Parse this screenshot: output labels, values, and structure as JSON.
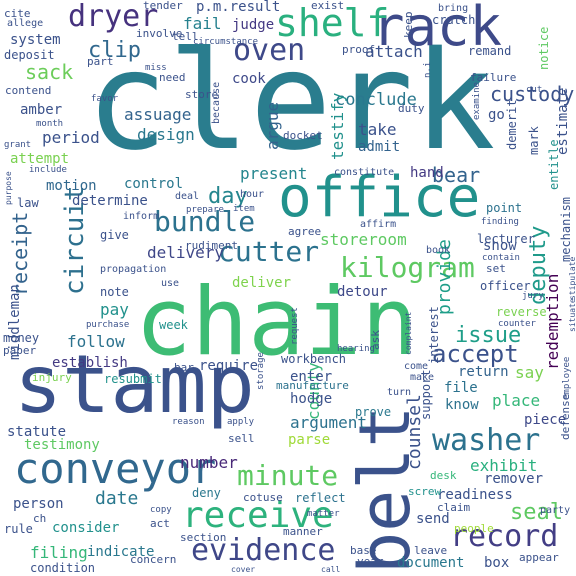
{
  "words": [
    {
      "text": "clerk",
      "color": "#2a7d8e",
      "rot": 0
    },
    {
      "text": "chain",
      "color": "#3dbc74",
      "rot": 0
    },
    {
      "text": "stamp",
      "color": "#3b528b",
      "rot": 0
    },
    {
      "text": "belt",
      "color": "#3b528b",
      "rot": -90
    },
    {
      "text": "office",
      "color": "#21918c",
      "rot": 0
    },
    {
      "text": "rack",
      "color": "#3e4a89",
      "rot": 0
    },
    {
      "text": "shelf",
      "color": "#2ab07f",
      "rot": 0
    },
    {
      "text": "conveyor",
      "color": "#31688e",
      "rot": 0
    },
    {
      "text": "receive",
      "color": "#2db27d",
      "rot": 0
    },
    {
      "text": "evidence",
      "color": "#3f4788",
      "rot": 0
    },
    {
      "text": "record",
      "color": "#433e85",
      "rot": 0
    },
    {
      "text": "washer",
      "color": "#2c728e",
      "rot": 0
    },
    {
      "text": "kilogram",
      "color": "#5ec962",
      "rot": 0
    },
    {
      "text": "minute",
      "color": "#5ec962",
      "rot": 0
    },
    {
      "text": "cutter",
      "color": "#2c728e",
      "rot": 0
    },
    {
      "text": "bundle",
      "color": "#2c728e",
      "rot": 0
    },
    {
      "text": "oven",
      "color": "#3e4989",
      "rot": 0
    },
    {
      "text": "dryer",
      "color": "#46327e",
      "rot": 0
    },
    {
      "text": "accept",
      "color": "#3b528b",
      "rot": 0
    },
    {
      "text": "issue",
      "color": "#1f9e89",
      "rot": 0
    },
    {
      "text": "circuit",
      "color": "#2d708e",
      "rot": -90
    },
    {
      "text": "receipt",
      "color": "#33638d",
      "rot": -90
    },
    {
      "text": "deputy",
      "color": "#1f9a8a",
      "rot": -90
    },
    {
      "text": "day",
      "color": "#24868e",
      "rot": 0
    },
    {
      "text": "seal",
      "color": "#5ec962",
      "rot": 0
    },
    {
      "text": "exhibit",
      "color": "#2ab07f",
      "rot": 0
    },
    {
      "text": "bear",
      "color": "#33638d",
      "rot": 0
    },
    {
      "text": "custody",
      "color": "#3b528b",
      "rot": 0
    },
    {
      "text": "conclude",
      "color": "#2a788e",
      "rot": 0
    },
    {
      "text": "sack",
      "color": "#6ccd5a",
      "rot": 0
    },
    {
      "text": "clip",
      "color": "#31688e",
      "rot": 0
    },
    {
      "text": "storeroom",
      "color": "#5ec962",
      "rot": 0
    },
    {
      "text": "provide",
      "color": "#1f9e89",
      "rot": -90
    },
    {
      "text": "redemption",
      "color": "#440154",
      "rot": -90
    },
    {
      "text": "county",
      "color": "#35b779",
      "rot": -90
    },
    {
      "text": "counsel",
      "color": "#3b528b",
      "rot": -90
    },
    {
      "text": "argument",
      "color": "#2c728e",
      "rot": 0
    },
    {
      "text": "date",
      "color": "#2a788e",
      "rot": 0
    },
    {
      "text": "number",
      "color": "#482878",
      "rot": 0
    },
    {
      "text": "statute",
      "color": "#3b528b",
      "rot": 0
    },
    {
      "text": "testimony",
      "color": "#5ec962",
      "rot": 0
    },
    {
      "text": "delivery",
      "color": "#3f4788",
      "rot": 0
    },
    {
      "text": "deliver",
      "color": "#7fd34e",
      "rot": 0
    },
    {
      "text": "follow",
      "color": "#2c728e",
      "rot": 0
    },
    {
      "text": "pay",
      "color": "#21918c",
      "rot": 0
    },
    {
      "text": "establish",
      "color": "#443a83",
      "rot": 0
    },
    {
      "text": "require",
      "color": "#3b528b",
      "rot": 0
    },
    {
      "text": "detour",
      "color": "#3e4989",
      "rot": 0
    },
    {
      "text": "return",
      "color": "#33638d",
      "rot": 0
    },
    {
      "text": "place",
      "color": "#35b779",
      "rot": 0
    },
    {
      "text": "remover",
      "color": "#3b528b",
      "rot": 0
    },
    {
      "text": "readiness",
      "color": "#3b528b",
      "rot": 0
    },
    {
      "text": "piece",
      "color": "#3e4989",
      "rot": 0
    },
    {
      "text": "know",
      "color": "#2c728e",
      "rot": 0
    },
    {
      "text": "file",
      "color": "#2c728e",
      "rot": 0
    },
    {
      "text": "say",
      "color": "#7ad151",
      "rot": 0
    },
    {
      "text": "enter",
      "color": "#3b528b",
      "rot": 0
    },
    {
      "text": "hodge",
      "color": "#3b528b",
      "rot": 0
    },
    {
      "text": "parse",
      "color": "#a0da39",
      "rot": 0
    },
    {
      "text": "present",
      "color": "#24868e",
      "rot": 0
    },
    {
      "text": "determine",
      "color": "#3b528b",
      "rot": 0
    },
    {
      "text": "control",
      "color": "#2a788e",
      "rot": 0
    },
    {
      "text": "motion",
      "color": "#31688e",
      "rot": 0
    },
    {
      "text": "period",
      "color": "#3b528b",
      "rot": 0
    },
    {
      "text": "design",
      "color": "#2a788e",
      "rot": 0
    },
    {
      "text": "assuage",
      "color": "#33638d",
      "rot": 0
    },
    {
      "text": "argue",
      "color": "#33638d",
      "rot": -90
    },
    {
      "text": "testify",
      "color": "#21918c",
      "rot": -90
    },
    {
      "text": "take",
      "color": "#3b528b",
      "rot": 0
    },
    {
      "text": "admit",
      "color": "#33638d",
      "rot": 0
    },
    {
      "text": "hand",
      "color": "#443a83",
      "rot": 0
    },
    {
      "text": "attach",
      "color": "#3b528b",
      "rot": 0
    },
    {
      "text": "judge",
      "color": "#443983",
      "rot": 0
    },
    {
      "text": "fail",
      "color": "#26818e",
      "rot": 0
    },
    {
      "text": "system",
      "color": "#3b528b",
      "rot": 0
    },
    {
      "text": "deposit",
      "color": "#3b528b",
      "rot": 0
    },
    {
      "text": "amber",
      "color": "#3b528b",
      "rot": 0
    },
    {
      "text": "attempt",
      "color": "#7ad151",
      "rot": 0
    },
    {
      "text": "cook",
      "color": "#3e4989",
      "rot": 0
    },
    {
      "text": "middleman",
      "color": "#3b528b",
      "rot": -90
    },
    {
      "text": "money",
      "color": "#3b528b",
      "rot": 0
    },
    {
      "text": "paper",
      "color": "#3b528b",
      "rot": 0
    },
    {
      "text": "give",
      "color": "#3b528b",
      "rot": 0
    },
    {
      "text": "note",
      "color": "#3b528b",
      "rot": 0
    },
    {
      "text": "week",
      "color": "#21918c",
      "rot": 0
    },
    {
      "text": "person",
      "color": "#3b528b",
      "rot": 0
    },
    {
      "text": "consider",
      "color": "#21918c",
      "rot": 0
    },
    {
      "text": "filing",
      "color": "#35b779",
      "rot": 0
    },
    {
      "text": "indicate",
      "color": "#2a788e",
      "rot": 0
    },
    {
      "text": "resubmit",
      "color": "#21918c",
      "rot": 0
    },
    {
      "text": "injury",
      "color": "#7ad151",
      "rot": 0
    },
    {
      "text": "send",
      "color": "#3b528b",
      "rot": 0
    },
    {
      "text": "document",
      "color": "#2a788e",
      "rot": 0
    },
    {
      "text": "box",
      "color": "#3b528b",
      "rot": 0
    },
    {
      "text": "prove",
      "color": "#2a788e",
      "rot": 0
    },
    {
      "text": "deny",
      "color": "#2a788e",
      "rot": 0
    },
    {
      "text": "cotuse",
      "color": "#3b528b",
      "rot": 0
    },
    {
      "text": "reflect",
      "color": "#2c728e",
      "rot": 0
    },
    {
      "text": "sell",
      "color": "#3b528b",
      "rot": 0
    },
    {
      "text": "manufacture",
      "color": "#2c728e",
      "rot": 0
    },
    {
      "text": "workbench",
      "color": "#3b528b",
      "rot": 0
    },
    {
      "text": "support",
      "color": "#3b528b",
      "rot": -90
    },
    {
      "text": "interest",
      "color": "#3b528b",
      "rot": -90
    },
    {
      "text": "officer",
      "color": "#3b528b",
      "rot": 0
    },
    {
      "text": "lecturer",
      "color": "#3b528b",
      "rot": 0
    },
    {
      "text": "point",
      "color": "#2c728e",
      "rot": 0
    },
    {
      "text": "show",
      "color": "#3b528b",
      "rot": 0
    },
    {
      "text": "set",
      "color": "#3b528b",
      "rot": 0
    },
    {
      "text": "estimate",
      "color": "#3b528b",
      "rot": -90
    },
    {
      "text": "mark",
      "color": "#3b528b",
      "rot": -90
    },
    {
      "text": "demerit",
      "color": "#3b528b",
      "rot": -90
    },
    {
      "text": "go",
      "color": "#3b528b",
      "rot": 0
    },
    {
      "text": "remand",
      "color": "#3b528b",
      "rot": 0
    },
    {
      "text": "failure",
      "color": "#3b528b",
      "rot": 0
    },
    {
      "text": "notice",
      "color": "#5ec962",
      "rot": -90
    },
    {
      "text": "entitle",
      "color": "#21918c",
      "rot": -90
    },
    {
      "text": "mechanism",
      "color": "#3b528b",
      "rot": -90
    },
    {
      "text": "reverse",
      "color": "#7ad151",
      "rot": 0
    },
    {
      "text": "defense",
      "color": "#3b528b",
      "rot": -90
    },
    {
      "text": "employee",
      "color": "#3b528b",
      "rot": -90
    },
    {
      "text": "party",
      "color": "#3b528b",
      "rot": 0
    },
    {
      "text": "appear",
      "color": "#3b528b",
      "rot": 0
    },
    {
      "text": "leave",
      "color": "#3b528b",
      "rot": 0
    },
    {
      "text": "base",
      "color": "#3b528b",
      "rot": 0
    },
    {
      "text": "year",
      "color": "#3b528b",
      "rot": 0
    },
    {
      "text": "claim",
      "color": "#3b528b",
      "rot": 0
    },
    {
      "text": "screw",
      "color": "#21918c",
      "rot": 0
    },
    {
      "text": "desk",
      "color": "#35b779",
      "rot": 0
    },
    {
      "text": "people",
      "color": "#a0da39",
      "rot": 0
    },
    {
      "text": "rule",
      "color": "#3b528b",
      "rot": 0
    },
    {
      "text": "condition",
      "color": "#3b528b",
      "rot": 0
    },
    {
      "text": "concern",
      "color": "#3b528b",
      "rot": 0
    },
    {
      "text": "section",
      "color": "#3b528b",
      "rot": 0
    },
    {
      "text": "manner",
      "color": "#3b528b",
      "rot": 0
    },
    {
      "text": "act",
      "color": "#3b528b",
      "rot": 0
    },
    {
      "text": "copy",
      "color": "#3b528b",
      "rot": 0
    },
    {
      "text": "ch",
      "color": "#3b528b",
      "rot": 0
    },
    {
      "text": "matter",
      "color": "#3b528b",
      "rot": 0
    },
    {
      "text": "reason",
      "color": "#3b528b",
      "rot": 0
    },
    {
      "text": "apply",
      "color": "#3b528b",
      "rot": 0
    },
    {
      "text": "turn",
      "color": "#3b528b",
      "rot": 0
    },
    {
      "text": "come",
      "color": "#3b528b",
      "rot": 0
    },
    {
      "text": "make",
      "color": "#3b528b",
      "rot": 0
    },
    {
      "text": "ask",
      "color": "#3b528b",
      "rot": -90
    },
    {
      "text": "bar",
      "color": "#3b528b",
      "rot": 0
    },
    {
      "text": "cite",
      "color": "#3b528b",
      "rot": 0
    },
    {
      "text": "allege",
      "color": "#3b528b",
      "rot": 0
    },
    {
      "text": "tender",
      "color": "#3b528b",
      "rot": 0
    },
    {
      "text": "p.m.result",
      "color": "#3b528b",
      "rot": 0
    },
    {
      "text": "exist",
      "color": "#3b528b",
      "rot": 0
    },
    {
      "text": "keep",
      "color": "#3b528b",
      "rot": -90
    },
    {
      "text": "crutch",
      "color": "#3b528b",
      "rot": 0
    },
    {
      "text": "bring",
      "color": "#3b528b",
      "rot": 0
    },
    {
      "text": "involve",
      "color": "#3b528b",
      "rot": 0
    },
    {
      "text": "tell",
      "color": "#3b528b",
      "rot": 0
    },
    {
      "text": "circumstance",
      "color": "#3b528b",
      "rot": 0
    },
    {
      "text": "proof",
      "color": "#3b528b",
      "rot": 0
    },
    {
      "text": "part",
      "color": "#3b528b",
      "rot": 0
    },
    {
      "text": "miss",
      "color": "#3b528b",
      "rot": 0
    },
    {
      "text": "favor",
      "color": "#3b528b",
      "rot": 0
    },
    {
      "text": "need",
      "color": "#3b528b",
      "rot": 0
    },
    {
      "text": "store",
      "color": "#3b528b",
      "rot": 0
    },
    {
      "text": "contend",
      "color": "#3b528b",
      "rot": 0
    },
    {
      "text": "month",
      "color": "#3b528b",
      "rot": 0
    },
    {
      "text": "grant",
      "color": "#3b528b",
      "rot": 0
    },
    {
      "text": "because",
      "color": "#3b528b",
      "rot": -90
    },
    {
      "text": "duty",
      "color": "#3b528b",
      "rot": 0
    },
    {
      "text": "docket",
      "color": "#3b528b",
      "rot": 0
    },
    {
      "text": "constitute",
      "color": "#3b528b",
      "rot": 0
    },
    {
      "text": "include",
      "color": "#3b528b",
      "rot": 0
    },
    {
      "text": "purpose",
      "color": "#3b528b",
      "rot": -90
    },
    {
      "text": "law",
      "color": "#3b528b",
      "rot": 0
    },
    {
      "text": "inform",
      "color": "#3b528b",
      "rot": 0
    },
    {
      "text": "prepare",
      "color": "#3b528b",
      "rot": 0
    },
    {
      "text": "item",
      "color": "#3b528b",
      "rot": 0
    },
    {
      "text": "hour",
      "color": "#3b528b",
      "rot": 0
    },
    {
      "text": "deal",
      "color": "#3b528b",
      "rot": 0
    },
    {
      "text": "rudiment",
      "color": "#3b528b",
      "rot": 0
    },
    {
      "text": "agree",
      "color": "#3b528b",
      "rot": 0
    },
    {
      "text": "affirm",
      "color": "#3b528b",
      "rot": 0
    },
    {
      "text": "book",
      "color": "#3b528b",
      "rot": 0
    },
    {
      "text": "propagation",
      "color": "#3b528b",
      "rot": 0
    },
    {
      "text": "use",
      "color": "#3b528b",
      "rot": 0
    },
    {
      "text": "purchase",
      "color": "#3b528b",
      "rot": 0
    },
    {
      "text": "request",
      "color": "#3b528b",
      "rot": -90
    },
    {
      "text": "storage",
      "color": "#3b528b",
      "rot": -90
    },
    {
      "text": "hearing",
      "color": "#3b528b",
      "rot": 0
    },
    {
      "text": "complaint",
      "color": "#3b528b",
      "rot": -90
    },
    {
      "text": "finding",
      "color": "#3b528b",
      "rot": 0
    },
    {
      "text": "contain",
      "color": "#3b528b",
      "rot": 0
    },
    {
      "text": "jury",
      "color": "#3b528b",
      "rot": 0
    },
    {
      "text": "counter",
      "color": "#3b528b",
      "rot": 0
    },
    {
      "text": "cut",
      "color": "#3b528b",
      "rot": 0
    },
    {
      "text": "examine",
      "color": "#3b528b",
      "rot": -90
    },
    {
      "text": "call",
      "color": "#3b528b",
      "rot": 0
    },
    {
      "text": "cover",
      "color": "#3b528b",
      "rot": 0
    },
    {
      "text": "n.i",
      "color": "#3b528b",
      "rot": -90
    },
    {
      "text": "situate",
      "color": "#3b528b",
      "rot": -90
    },
    {
      "text": "stipulate",
      "color": "#3b528b",
      "rot": -90
    }
  ]
}
